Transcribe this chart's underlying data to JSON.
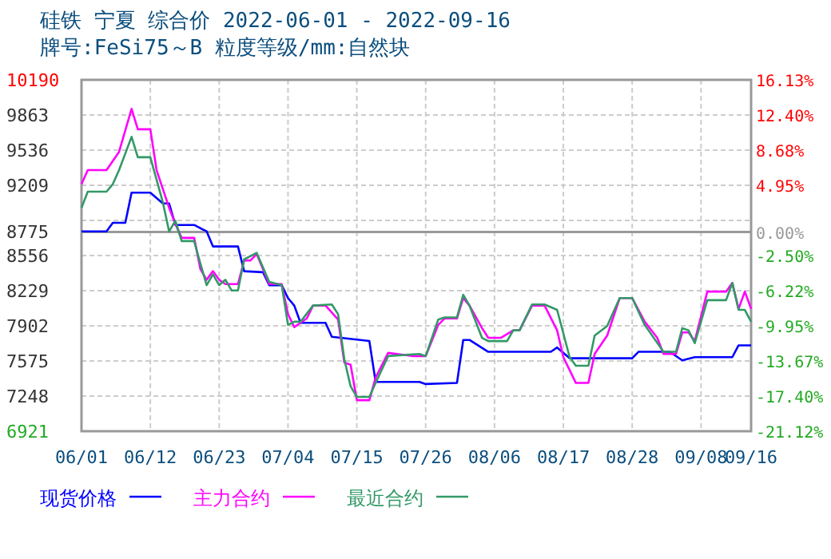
{
  "chart_data": {
    "type": "line",
    "title": "硅铁 宁夏 综合价 2022-06-01 - 2022-09-16",
    "subtitle": "牌号:FeSi75～B 粒度等级/mm:自然块",
    "xlim": [
      "2022-06-01",
      "2022-09-16"
    ],
    "xticks": [
      {
        "value": "2022-06-01",
        "label": "06/01"
      },
      {
        "value": "2022-06-12",
        "label": "06/12"
      },
      {
        "value": "2022-06-23",
        "label": "06/23"
      },
      {
        "value": "2022-07-04",
        "label": "07/04"
      },
      {
        "value": "2022-07-15",
        "label": "07/15"
      },
      {
        "value": "2022-07-26",
        "label": "07/26"
      },
      {
        "value": "2022-08-06",
        "label": "08/06"
      },
      {
        "value": "2022-08-17",
        "label": "08/17"
      },
      {
        "value": "2022-08-28",
        "label": "08/28"
      },
      {
        "value": "2022-09-08",
        "label": "09/08"
      },
      {
        "value": "2022-09-16",
        "label": "09/16"
      }
    ],
    "ylim": [
      6921,
      10190
    ],
    "yticks": [
      10190,
      9863,
      9536,
      9209,
      {
        "value": 8882,
        "label": null
      },
      8775,
      8556,
      8229,
      7902,
      7575,
      7248,
      6921
    ],
    "y2lim": [
      -21.12,
      16.13
    ],
    "y2ticks": [
      {
        "value": 16.13,
        "label": "16.13%"
      },
      {
        "value": 12.4,
        "label": "12.40%"
      },
      {
        "value": 8.68,
        "label": "8.68%"
      },
      {
        "value": 4.95,
        "label": "4.95%"
      },
      {
        "value": 0,
        "label": "0.00%"
      },
      {
        "value": -2.5,
        "label": "-2.50%"
      },
      {
        "value": -6.22,
        "label": "-6.22%"
      },
      {
        "value": -9.95,
        "label": "-9.95%"
      },
      {
        "value": -13.67,
        "label": "-13.67%"
      },
      {
        "value": -17.4,
        "label": "-17.40%"
      },
      {
        "value": -21.12,
        "label": "-21.12%"
      }
    ],
    "ref_lines": [
      {
        "axis": "y2",
        "value": 0,
        "label": null,
        "color": "#999999",
        "line_style": "solid"
      }
    ],
    "grid": true,
    "legend": "bottom",
    "line_style": "solid",
    "series": [
      {
        "name": "现货价格",
        "color": "#0000ff",
        "x": [
          "2022-06-01",
          "2022-06-05",
          "2022-06-06",
          "2022-06-08",
          "2022-06-09",
          "2022-06-12",
          "2022-06-14",
          "2022-06-15",
          "2022-06-16",
          "2022-06-19",
          "2022-06-21",
          "2022-06-22",
          "2022-06-26",
          "2022-06-27",
          "2022-06-30",
          "2022-07-01",
          "2022-07-03",
          "2022-07-04",
          "2022-07-05",
          "2022-07-06",
          "2022-07-10",
          "2022-07-11",
          "2022-07-17",
          "2022-07-18",
          "2022-07-25",
          "2022-07-26",
          "2022-07-31",
          "2022-08-01",
          "2022-08-02",
          "2022-08-05",
          "2022-08-15",
          "2022-08-16",
          "2022-08-18",
          "2022-08-28",
          "2022-08-29",
          "2022-09-03",
          "2022-09-05",
          "2022-09-07",
          "2022-09-13",
          "2022-09-14",
          "2022-09-16"
        ],
        "values": [
          8780,
          8780,
          8860,
          8860,
          9140,
          9140,
          9040,
          9040,
          8840,
          8840,
          8780,
          8640,
          8640,
          8410,
          8400,
          8280,
          8280,
          8160,
          8090,
          7930,
          7930,
          7800,
          7760,
          7380,
          7380,
          7360,
          7370,
          7770,
          7770,
          7660,
          7660,
          7700,
          7600,
          7600,
          7660,
          7660,
          7580,
          7610,
          7610,
          7720,
          7720
        ]
      },
      {
        "name": "主力合约",
        "color": "#ff00ff",
        "x": [
          "2022-06-01",
          "2022-06-02",
          "2022-06-05",
          "2022-06-07",
          "2022-06-09",
          "2022-06-10",
          "2022-06-12",
          "2022-06-13",
          "2022-06-15",
          "2022-06-16",
          "2022-06-17",
          "2022-06-19",
          "2022-06-20",
          "2022-06-21",
          "2022-06-22",
          "2022-06-23",
          "2022-06-24",
          "2022-06-26",
          "2022-06-27",
          "2022-06-28",
          "2022-06-29",
          "2022-06-30",
          "2022-07-01",
          "2022-07-03",
          "2022-07-04",
          "2022-07-05",
          "2022-07-06",
          "2022-07-07",
          "2022-07-08",
          "2022-07-10",
          "2022-07-12",
          "2022-07-13",
          "2022-07-14",
          "2022-07-15",
          "2022-07-17",
          "2022-07-18",
          "2022-07-20",
          "2022-07-24",
          "2022-07-26",
          "2022-07-28",
          "2022-07-29",
          "2022-07-31",
          "2022-08-01",
          "2022-08-02",
          "2022-08-04",
          "2022-08-05",
          "2022-08-07",
          "2022-08-09",
          "2022-08-10",
          "2022-08-12",
          "2022-08-14",
          "2022-08-16",
          "2022-08-17",
          "2022-08-19",
          "2022-08-21",
          "2022-08-22",
          "2022-08-24",
          "2022-08-26",
          "2022-08-28",
          "2022-08-30",
          "2022-09-01",
          "2022-09-02",
          "2022-09-04",
          "2022-09-05",
          "2022-09-06",
          "2022-09-07",
          "2022-09-09",
          "2022-09-12",
          "2022-09-13",
          "2022-09-14",
          "2022-09-15",
          "2022-09-16"
        ],
        "values": [
          9220,
          9350,
          9350,
          9520,
          9920,
          9730,
          9730,
          9350,
          9000,
          8850,
          8720,
          8720,
          8430,
          8330,
          8410,
          8330,
          8290,
          8290,
          8510,
          8510,
          8570,
          8430,
          8290,
          8290,
          8010,
          7890,
          7930,
          7970,
          8090,
          8090,
          7960,
          7560,
          7540,
          7210,
          7210,
          7420,
          7650,
          7620,
          7620,
          7910,
          7970,
          7970,
          8160,
          8090,
          7880,
          7790,
          7790,
          7860,
          7860,
          8090,
          8090,
          7860,
          7610,
          7370,
          7370,
          7640,
          7810,
          8160,
          8160,
          7940,
          7790,
          7640,
          7640,
          7840,
          7840,
          7760,
          8220,
          8220,
          8300,
          8060,
          8220,
          8060
        ]
      },
      {
        "name": "最近合约",
        "color": "#339966",
        "x": [
          "2022-06-01",
          "2022-06-02",
          "2022-06-05",
          "2022-06-06",
          "2022-06-07",
          "2022-06-09",
          "2022-06-10",
          "2022-06-12",
          "2022-06-14",
          "2022-06-15",
          "2022-06-16",
          "2022-06-17",
          "2022-06-19",
          "2022-06-20",
          "2022-06-21",
          "2022-06-22",
          "2022-06-23",
          "2022-06-24",
          "2022-06-25",
          "2022-06-26",
          "2022-06-27",
          "2022-06-29",
          "2022-07-01",
          "2022-07-03",
          "2022-07-04",
          "2022-07-05",
          "2022-07-06",
          "2022-07-08",
          "2022-07-11",
          "2022-07-12",
          "2022-07-13",
          "2022-07-14",
          "2022-07-15",
          "2022-07-17",
          "2022-07-18",
          "2022-07-20",
          "2022-07-25",
          "2022-07-26",
          "2022-07-28",
          "2022-07-29",
          "2022-07-31",
          "2022-08-01",
          "2022-08-02",
          "2022-08-04",
          "2022-08-05",
          "2022-08-08",
          "2022-08-09",
          "2022-08-10",
          "2022-08-12",
          "2022-08-14",
          "2022-08-16",
          "2022-08-18",
          "2022-08-19",
          "2022-08-21",
          "2022-08-22",
          "2022-08-24",
          "2022-08-26",
          "2022-08-28",
          "2022-08-30",
          "2022-09-02",
          "2022-09-04",
          "2022-09-05",
          "2022-09-06",
          "2022-09-07",
          "2022-09-09",
          "2022-09-12",
          "2022-09-13",
          "2022-09-14",
          "2022-09-15",
          "2022-09-16"
        ],
        "values": [
          9000,
          9150,
          9150,
          9220,
          9350,
          9660,
          9470,
          9470,
          9050,
          8780,
          8880,
          8690,
          8690,
          8480,
          8280,
          8380,
          8280,
          8330,
          8230,
          8230,
          8520,
          8580,
          8310,
          8280,
          7910,
          7940,
          7940,
          8090,
          8100,
          8010,
          7590,
          7340,
          7240,
          7240,
          7370,
          7620,
          7640,
          7620,
          7960,
          7980,
          7980,
          8190,
          8090,
          7790,
          7760,
          7760,
          7860,
          7860,
          8100,
          8100,
          8050,
          7610,
          7530,
          7530,
          7810,
          7900,
          8160,
          8160,
          7910,
          7660,
          7660,
          7880,
          7860,
          7740,
          8140,
          8140,
          8300,
          8050,
          8050,
          7940
        ]
      }
    ]
  }
}
